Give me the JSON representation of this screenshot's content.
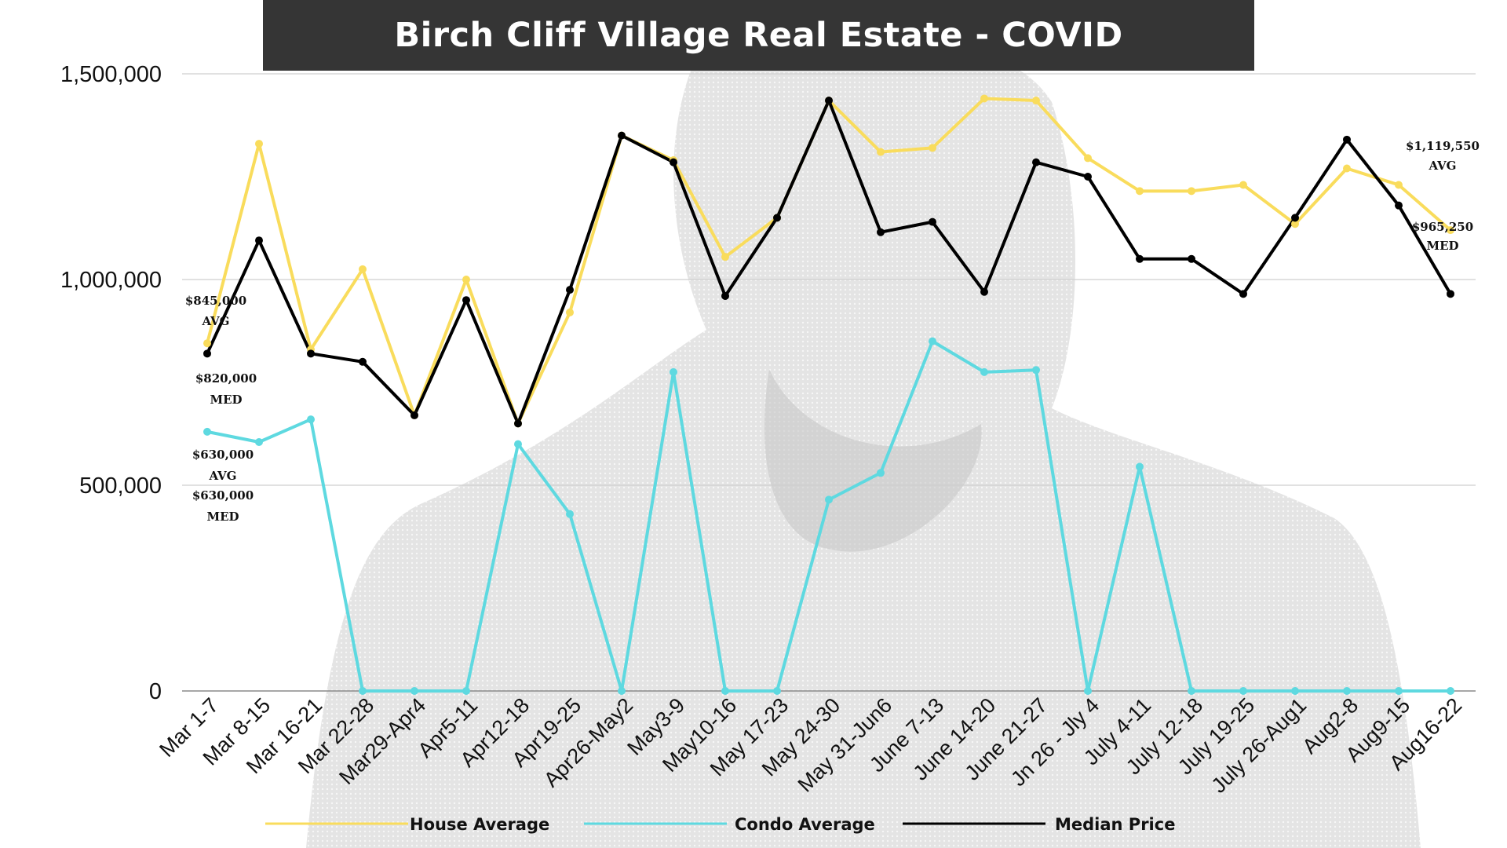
{
  "colors": {
    "house": "#f9dc5c",
    "condo": "#5ed9e0",
    "median": "#000000",
    "title_bg": "#353535",
    "grid": "#cfcfcf"
  },
  "chart_data": {
    "type": "line",
    "title": "Birch Cliff Village Real Estate - COVID",
    "xlabel": "",
    "ylabel": "",
    "ylim": [
      0,
      1500000
    ],
    "yticks": [
      0,
      500000,
      1000000,
      1500000
    ],
    "ytick_labels": [
      "0",
      "500,000",
      "1,000,000",
      "1,500,000"
    ],
    "grid": true,
    "legend_position": "bottom",
    "categories": [
      "Mar 1-7",
      "Mar 8-15",
      "Mar 16-21",
      "Mar 22-28",
      "Mar29-Apr4",
      "Apr5-11",
      "Apr12-18",
      "Apr19-25",
      "Apr26-May2",
      "May3-9",
      "May10-16",
      "May 17-23",
      "May 24-30",
      "May 31-Jun6",
      "June 7-13",
      "June 14-20",
      "June 21-27",
      "Jn 26 - Jly 4",
      "July 4-11",
      "July 12-18",
      "July 19-25",
      "July 26-Aug1",
      "Aug2-8",
      "Aug9-15",
      "Aug16-22"
    ],
    "series": [
      {
        "name": "House Average",
        "color": "#f9dc5c",
        "values": [
          845000,
          1330000,
          830000,
          1025000,
          670000,
          1000000,
          650000,
          920000,
          1350000,
          1290000,
          1055000,
          1150000,
          1435000,
          1310000,
          1320000,
          1440000,
          1435000,
          1295000,
          1215000,
          1215000,
          1230000,
          1135000,
          1270000,
          1230000,
          1120000
        ]
      },
      {
        "name": "Condo Average",
        "color": "#5ed9e0",
        "values": [
          630000,
          605000,
          660000,
          0,
          0,
          0,
          600000,
          430000,
          0,
          775000,
          0,
          0,
          465000,
          530000,
          850000,
          775000,
          780000,
          0,
          545000,
          0,
          0,
          0,
          0,
          0,
          0
        ]
      },
      {
        "name": "Median Price",
        "color": "#000000",
        "values": [
          820000,
          1095000,
          820000,
          800000,
          670000,
          950000,
          650000,
          975000,
          1350000,
          1285000,
          960000,
          1150000,
          1435000,
          1115000,
          1140000,
          970000,
          1285000,
          1250000,
          1050000,
          1050000,
          965000,
          1150000,
          1340000,
          1180000,
          965000
        ]
      }
    ],
    "annotations": [
      {
        "text": "$845,000",
        "series": "House Average",
        "index": 0
      },
      {
        "text": "AVG",
        "series": "House Average",
        "index": 0
      },
      {
        "text": "$820,000",
        "series": "Median Price",
        "index": 0
      },
      {
        "text": "MED",
        "series": "Median Price",
        "index": 0
      },
      {
        "text": "$630,000",
        "series": "Condo Average",
        "index": 0
      },
      {
        "text": "AVG",
        "series": "Condo Average",
        "index": 0
      },
      {
        "text": "$630,000",
        "series": "Condo Average",
        "index": 0
      },
      {
        "text": "MED",
        "series": "Condo Average",
        "index": 0
      },
      {
        "text": "$1,119,550",
        "series": "House Average",
        "index": 24
      },
      {
        "text": "AVG",
        "series": "House Average",
        "index": 24
      },
      {
        "text": "$965,250",
        "series": "Median Price",
        "index": 24
      },
      {
        "text": "MED",
        "series": "Median Price",
        "index": 24
      }
    ]
  }
}
